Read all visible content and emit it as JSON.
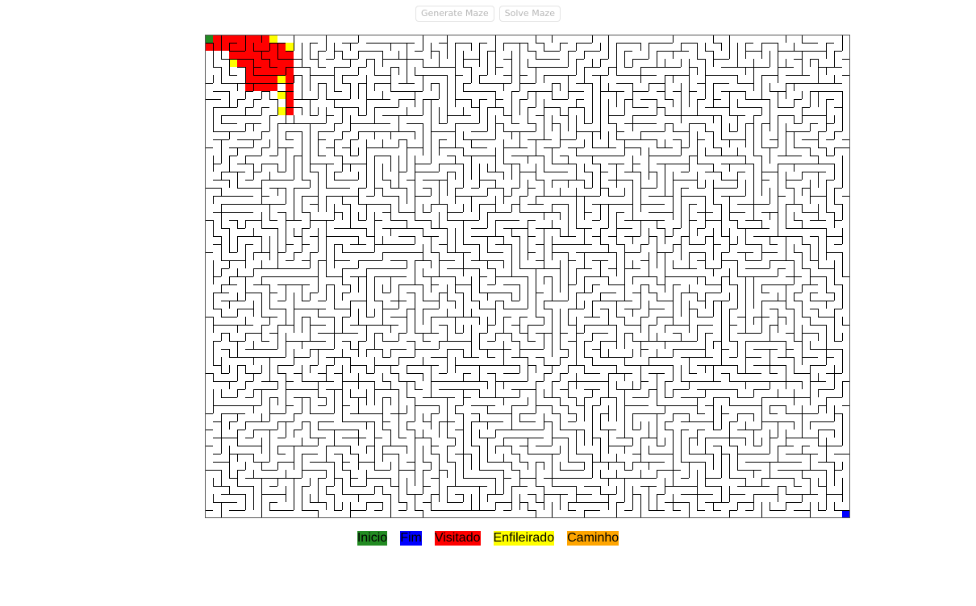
{
  "toolbar": {
    "generate_label": "Generate Maze",
    "solve_label": "Solve Maze"
  },
  "maze": {
    "cols": 80,
    "rows": 60,
    "start_color": "#228b22",
    "end_color": "#0000ff",
    "visited_color": "#ff0000",
    "queued_color": "#ffff00",
    "wall_color": "#000000"
  },
  "legend": {
    "start": {
      "label": "Inicio",
      "color": "#228b22"
    },
    "end": {
      "label": "Fim",
      "color": "#0000ff"
    },
    "visited": {
      "label": "Visitado",
      "color": "#ff0000"
    },
    "queued": {
      "label": "Enfileirado",
      "color": "#ffff00"
    },
    "path": {
      "label": "Caminho",
      "color": "#ffa500"
    }
  }
}
